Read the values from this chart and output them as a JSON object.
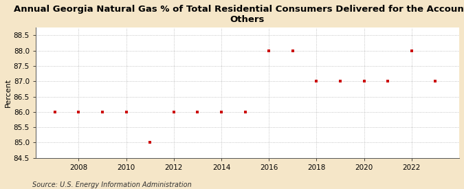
{
  "title": "Annual Georgia Natural Gas % of Total Residential Consumers Delivered for the Account of\nOthers",
  "ylabel": "Percent",
  "source": "Source: U.S. Energy Information Administration",
  "years": [
    2007,
    2008,
    2009,
    2010,
    2011,
    2012,
    2013,
    2014,
    2015,
    2016,
    2017,
    2018,
    2019,
    2020,
    2021,
    2022,
    2023
  ],
  "values": [
    86.0,
    86.0,
    86.0,
    86.0,
    85.0,
    86.0,
    86.0,
    86.0,
    86.0,
    88.0,
    88.0,
    87.0,
    87.0,
    87.0,
    87.0,
    88.0,
    87.0
  ],
  "ylim": [
    84.5,
    88.75
  ],
  "yticks": [
    84.5,
    85.0,
    85.5,
    86.0,
    86.5,
    87.0,
    87.5,
    88.0,
    88.5
  ],
  "xlim": [
    2006.2,
    2024.0
  ],
  "xticks": [
    2008,
    2010,
    2012,
    2014,
    2016,
    2018,
    2020,
    2022
  ],
  "marker_color": "#cc0000",
  "marker": "s",
  "marker_size": 3.5,
  "figure_bg": "#f5e6c8",
  "plot_bg": "#ffffff",
  "grid_color": "#aaaaaa",
  "grid_style": ":",
  "title_fontsize": 9.5,
  "axis_fontsize": 7.5,
  "ylabel_fontsize": 8,
  "source_fontsize": 7
}
